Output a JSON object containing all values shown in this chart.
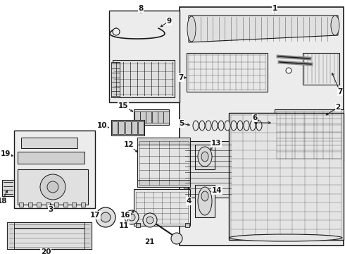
{
  "bg": "#f0f0f0",
  "white": "#ffffff",
  "lc": "#1a1a1a",
  "gray_box": "#d8d8d8",
  "part_fill": "#f8f8f8",
  "fig_w": 4.9,
  "fig_h": 3.6,
  "dpi": 100
}
